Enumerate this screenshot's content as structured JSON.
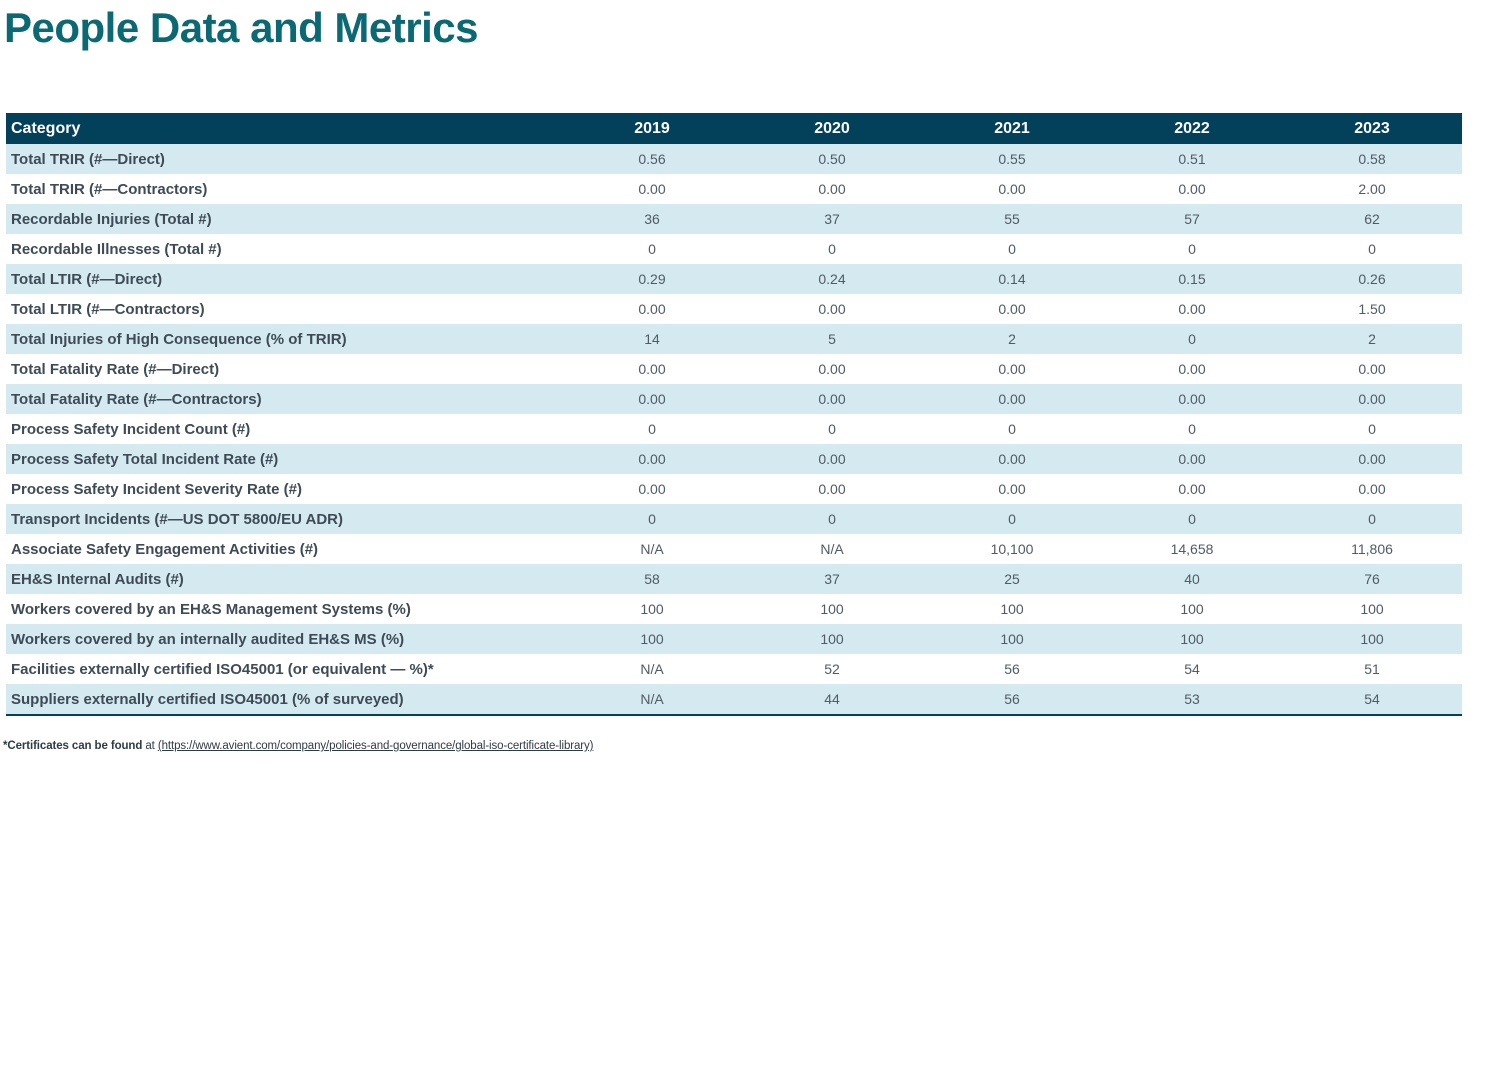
{
  "page": {
    "title": "People Data and Metrics"
  },
  "colors": {
    "title_teal": "#0A6973",
    "header_bg": "#03405A",
    "header_text": "#FFFFFF",
    "row_alt_bg": "#D5EAF0",
    "category_text": "#3E4B57",
    "value_text": "#4F5B66",
    "table_bottom_border": "#03405A"
  },
  "table": {
    "columns": [
      "Category",
      "2019",
      "2020",
      "2021",
      "2022",
      "2023"
    ],
    "rows": [
      {
        "category": "Total TRIR (#—Direct)",
        "values": [
          "0.56",
          "0.50",
          "0.55",
          "0.51",
          "0.58"
        ]
      },
      {
        "category": "Total TRIR (#—Contractors)",
        "values": [
          "0.00",
          "0.00",
          "0.00",
          "0.00",
          "2.00"
        ]
      },
      {
        "category": "Recordable Injuries (Total #)",
        "values": [
          "36",
          "37",
          "55",
          "57",
          "62"
        ]
      },
      {
        "category": "Recordable Illnesses (Total #)",
        "values": [
          "0",
          "0",
          "0",
          "0",
          "0"
        ]
      },
      {
        "category": "Total LTIR (#—Direct)",
        "values": [
          "0.29",
          "0.24",
          "0.14",
          "0.15",
          "0.26"
        ]
      },
      {
        "category": "Total LTIR (#—Contractors)",
        "values": [
          "0.00",
          "0.00",
          "0.00",
          "0.00",
          "1.50"
        ]
      },
      {
        "category": "Total Injuries of High Consequence (% of TRIR)",
        "values": [
          "14",
          "5",
          "2",
          "0",
          "2"
        ]
      },
      {
        "category": "Total Fatality Rate (#—Direct)",
        "values": [
          "0.00",
          "0.00",
          "0.00",
          "0.00",
          "0.00"
        ]
      },
      {
        "category": "Total Fatality Rate (#—Contractors)",
        "values": [
          "0.00",
          "0.00",
          "0.00",
          "0.00",
          "0.00"
        ]
      },
      {
        "category": "Process Safety Incident Count (#)",
        "values": [
          "0",
          "0",
          "0",
          "0",
          "0"
        ]
      },
      {
        "category": "Process Safety Total Incident Rate (#)",
        "values": [
          "0.00",
          "0.00",
          "0.00",
          "0.00",
          "0.00"
        ]
      },
      {
        "category": "Process Safety Incident Severity Rate (#)",
        "values": [
          "0.00",
          "0.00",
          "0.00",
          "0.00",
          "0.00"
        ]
      },
      {
        "category": "Transport Incidents (#—US DOT 5800/EU ADR)",
        "values": [
          "0",
          "0",
          "0",
          "0",
          "0"
        ]
      },
      {
        "category": "Associate Safety Engagement Activities (#)",
        "values": [
          "N/A",
          "N/A",
          "10,100",
          "14,658",
          "11,806"
        ]
      },
      {
        "category": "EH&S Internal Audits (#)",
        "values": [
          "58",
          "37",
          "25",
          "40",
          "76"
        ]
      },
      {
        "category": "Workers covered by an EH&S Management Systems (%)",
        "values": [
          "100",
          "100",
          "100",
          "100",
          "100"
        ]
      },
      {
        "category": "Workers covered by an internally audited EH&S MS (%)",
        "values": [
          "100",
          "100",
          "100",
          "100",
          "100"
        ]
      },
      {
        "category": "Facilities externally certified ISO45001 (or equivalent — %)*",
        "values": [
          "N/A",
          "52",
          "56",
          "54",
          "51"
        ]
      },
      {
        "category": "Suppliers externally certified ISO45001 (% of surveyed)",
        "values": [
          "N/A",
          "44",
          "56",
          "53",
          "54"
        ]
      }
    ]
  },
  "footnote": {
    "bold_text": "*Certificates can be found",
    "connector": " at ",
    "link_text": "(https://www.avient.com/company/policies-and-governance/global-iso-certificate-library)"
  }
}
